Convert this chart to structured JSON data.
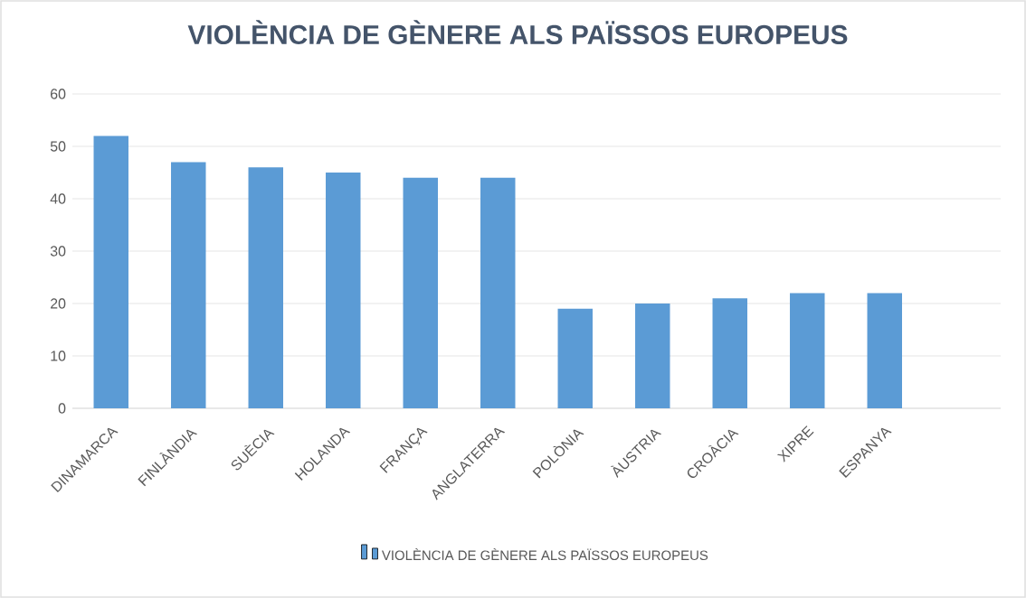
{
  "chart_data": {
    "type": "bar",
    "title": "VIOLÈNCIA DE GÈNERE ALS PAÏSSOS EUROPEUS",
    "categories": [
      "DINAMARCA",
      "FINLÀNDIA",
      "SUÈCIA",
      "HOLANDA",
      "FRANÇA",
      "ANGLATERRA",
      "POLÒNIA",
      "ÀUSTRIA",
      "CROÀCIA",
      "XIPRE",
      "ESPANYA",
      null
    ],
    "series": [
      {
        "name": "VIOLÈNCIA DE GÈNERE ALS PAÏSSOS EUROPEUS",
        "color": "#5b9bd5",
        "values": [
          52,
          47,
          46,
          45,
          44,
          44,
          19,
          20,
          21,
          22,
          22,
          null
        ]
      }
    ],
    "ylim": [
      0,
      60
    ],
    "yticks": [
      0,
      10,
      20,
      30,
      40,
      50,
      60
    ],
    "grid": "y",
    "legend": "bottom"
  }
}
